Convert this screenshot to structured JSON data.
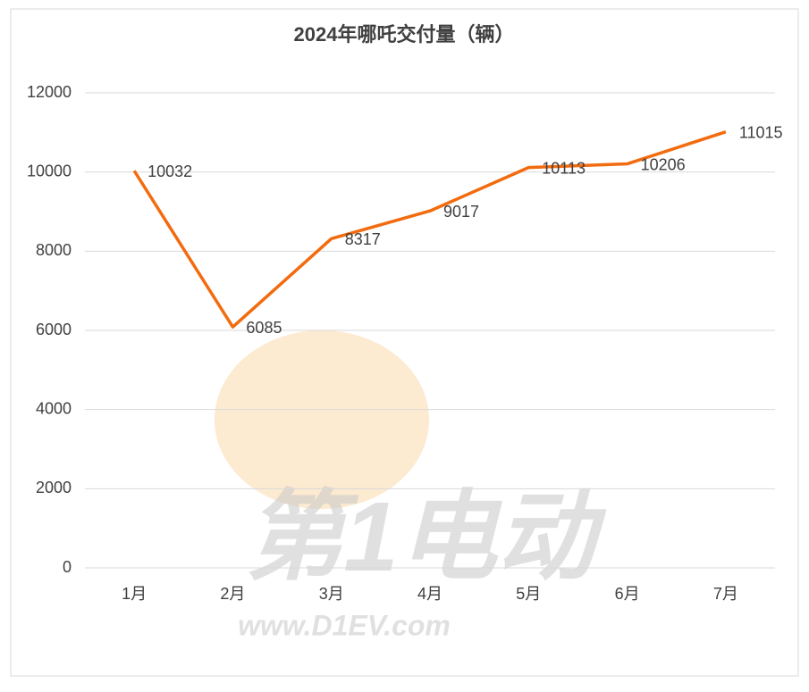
{
  "chart_data": {
    "type": "line",
    "title": "2024年哪吒交付量（辆）",
    "categories": [
      "1月",
      "2月",
      "3月",
      "4月",
      "5月",
      "6月",
      "7月"
    ],
    "series": [
      {
        "name": "交付量",
        "color": "#f26b0f",
        "values": [
          10032,
          6085,
          8317,
          9017,
          10113,
          10206,
          11015
        ]
      }
    ],
    "ylim": [
      0,
      12000
    ],
    "yticks": [
      0,
      2000,
      4000,
      6000,
      8000,
      10000,
      12000
    ],
    "grid": true,
    "watermark": [
      "第1电动",
      "www.D1EV.com"
    ]
  }
}
